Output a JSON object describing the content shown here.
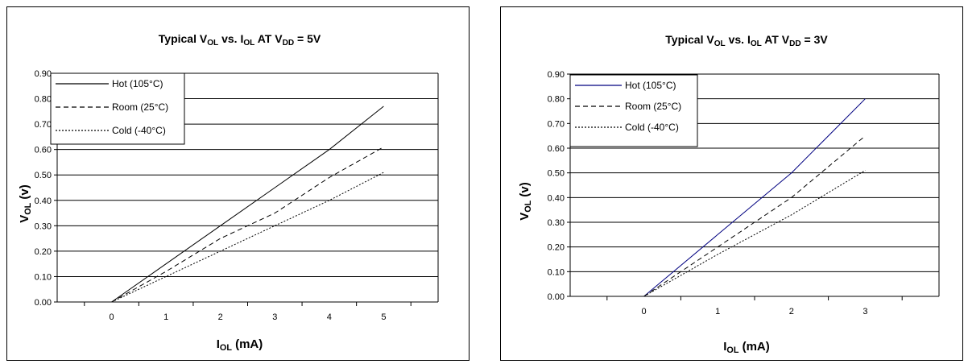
{
  "chart_data": [
    {
      "type": "line",
      "title": {
        "pre": "Typical V",
        "s1": "OL",
        "mid1": " vs. I",
        "s2": "OL",
        "mid2": " AT V",
        "s3": "DD",
        "post": " = 5V"
      },
      "xlabel": {
        "main": "I",
        "sub": "OL",
        "rest": " (mA)"
      },
      "ylabel": {
        "main": "V",
        "sub": "OL",
        "rest": " (v)"
      },
      "x": [
        0,
        1,
        2,
        3,
        4,
        5
      ],
      "xticks": [
        "0",
        "1",
        "2",
        "3",
        "4",
        "5"
      ],
      "ylim": [
        0,
        0.9
      ],
      "yticks": [
        "0.00",
        "0.10",
        "0.20",
        "0.30",
        "0.40",
        "0.50",
        "0.60",
        "0.70",
        "0.80",
        "0.90"
      ],
      "grid": true,
      "legend_position": "top-left",
      "series": [
        {
          "name": "Hot (105°C)",
          "values": [
            0,
            0.15,
            0.3,
            0.45,
            0.6,
            0.77
          ],
          "color": "#000000",
          "dash": "solid"
        },
        {
          "name": "Room (25°C)",
          "values": [
            0,
            0.12,
            0.25,
            0.35,
            0.49,
            0.61
          ],
          "color": "#000000",
          "dash": "dashed"
        },
        {
          "name": "Cold (-40°C)",
          "values": [
            0,
            0.1,
            0.2,
            0.3,
            0.4,
            0.51
          ],
          "color": "#000000",
          "dash": "dotted"
        }
      ]
    },
    {
      "type": "line",
      "title": {
        "pre": "Typical V",
        "s1": "OL",
        "mid1": " vs. I",
        "s2": "OL",
        "mid2": " AT V",
        "s3": "DD",
        "post": " = 3V"
      },
      "xlabel": {
        "main": "I",
        "sub": "OL",
        "rest": " (mA)"
      },
      "ylabel": {
        "main": "V",
        "sub": "OL",
        "rest": " (v)"
      },
      "x": [
        0,
        1,
        2,
        3
      ],
      "xticks": [
        "0",
        "1",
        "2",
        "3"
      ],
      "ylim": [
        0,
        0.9
      ],
      "yticks": [
        "0.00",
        "0.10",
        "0.20",
        "0.30",
        "0.40",
        "0.50",
        "0.60",
        "0.70",
        "0.80",
        "0.90"
      ],
      "grid": true,
      "legend_position": "top-left",
      "series": [
        {
          "name": "Hot (105°C)",
          "values": [
            0,
            0.25,
            0.5,
            0.8
          ],
          "color": "#000080",
          "dash": "solid"
        },
        {
          "name": "Room (25°C)",
          "values": [
            0,
            0.2,
            0.4,
            0.65
          ],
          "color": "#000000",
          "dash": "dashed"
        },
        {
          "name": "Cold (-40°C)",
          "values": [
            0,
            0.17,
            0.33,
            0.51
          ],
          "color": "#000000",
          "dash": "dotted"
        }
      ]
    }
  ]
}
